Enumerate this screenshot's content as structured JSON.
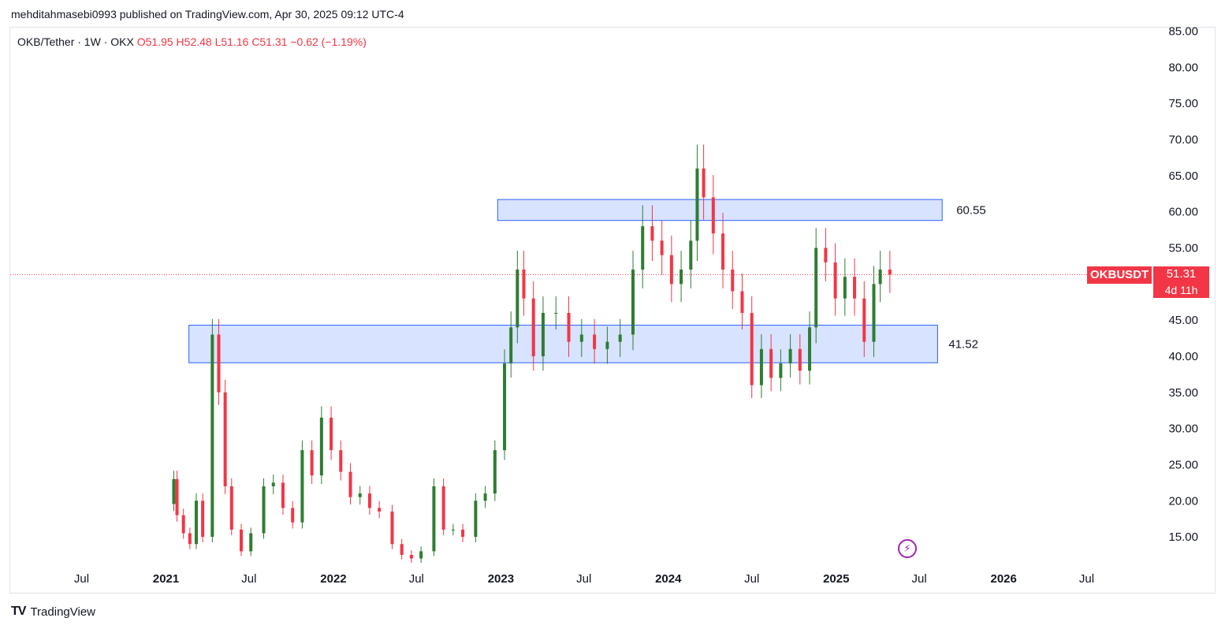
{
  "publisher_line": "mehditahmasebi0993 published on TradingView.com, Apr 30, 2025 09:12 UTC-4",
  "legend": {
    "symbol": "OKB/Tether · 1W · OKX",
    "open": "O51.95",
    "high": "H52.48",
    "low": "L51.16",
    "close": "C51.31",
    "change": "−0.62 (−1.19%)"
  },
  "price_tag": {
    "symbol": "OKBUSDT",
    "price": "51.31",
    "countdown": "4d 11h"
  },
  "brand": {
    "logo": "TV",
    "name": "TradingView"
  },
  "colors": {
    "up": "#22ab94",
    "up_body": "#2e7d32",
    "down": "#f23645",
    "zone_fill": "#d1deff",
    "zone_stroke": "#2962ff",
    "last_price_line": "#f23645"
  },
  "icons": [
    "tradingview-logo-icon",
    "flash-icon"
  ],
  "chart_data": {
    "type": "candlestick",
    "interval": "1W",
    "y_axis": {
      "ticks": [
        "15.00",
        "20.00",
        "25.00",
        "30.00",
        "35.00",
        "40.00",
        "45.00",
        "50.00",
        "55.00",
        "60.00",
        "65.00",
        "70.00",
        "75.00",
        "80.00",
        "85.00"
      ],
      "range": [
        11.5,
        85.5
      ],
      "side": "right"
    },
    "x_axis": {
      "ticks": [
        "Jul",
        "2021",
        "Jul",
        "2022",
        "Jul",
        "2023",
        "Jul",
        "2024",
        "Jul",
        "2025",
        "Jul",
        "2026",
        "Jul"
      ],
      "bold_ticks": [
        "2021",
        "2022",
        "2023",
        "2024",
        "2025",
        "2026"
      ],
      "range": [
        "2020-05-01",
        "2026-09-01"
      ]
    },
    "last_price": 51.31,
    "zones": [
      {
        "label": "60.55",
        "x_start": "2022-12-25",
        "x_end": "2025-08-20",
        "y_low": 58.8,
        "y_high": 61.7
      },
      {
        "label": "41.52",
        "x_start": "2021-02-20",
        "x_end": "2025-08-10",
        "y_low": 39.1,
        "y_high": 44.3
      }
    ],
    "candles": [
      {
        "t": "2021-01-18",
        "c": 23.0
      },
      {
        "t": "2021-01-25",
        "c": 18.0
      },
      {
        "t": "2021-02-08",
        "c": 15.5
      },
      {
        "t": "2021-02-22",
        "c": 14.0
      },
      {
        "t": "2021-03-08",
        "c": 20.0
      },
      {
        "t": "2021-03-22",
        "c": 15.0
      },
      {
        "t": "2021-04-12",
        "c": 43.0
      },
      {
        "t": "2021-04-26",
        "c": 35.0
      },
      {
        "t": "2021-05-10",
        "c": 22.0
      },
      {
        "t": "2021-05-24",
        "c": 16.0
      },
      {
        "t": "2021-06-14",
        "c": 13.0
      },
      {
        "t": "2021-07-05",
        "c": 15.5
      },
      {
        "t": "2021-08-02",
        "c": 22.0
      },
      {
        "t": "2021-08-23",
        "c": 22.5
      },
      {
        "t": "2021-09-13",
        "c": 19.0
      },
      {
        "t": "2021-10-04",
        "c": 17.0
      },
      {
        "t": "2021-10-25",
        "c": 27.0
      },
      {
        "t": "2021-11-15",
        "c": 23.5
      },
      {
        "t": "2021-12-06",
        "c": 31.5
      },
      {
        "t": "2021-12-27",
        "c": 27.0
      },
      {
        "t": "2022-01-17",
        "c": 24.0
      },
      {
        "t": "2022-02-07",
        "c": 20.5
      },
      {
        "t": "2022-02-28",
        "c": 21.0
      },
      {
        "t": "2022-03-21",
        "c": 19.0
      },
      {
        "t": "2022-04-11",
        "c": 18.5
      },
      {
        "t": "2022-05-09",
        "c": 14.0
      },
      {
        "t": "2022-05-30",
        "c": 12.5
      },
      {
        "t": "2022-06-20",
        "c": 12.0
      },
      {
        "t": "2022-07-11",
        "c": 13.0
      },
      {
        "t": "2022-08-08",
        "c": 22.0
      },
      {
        "t": "2022-08-29",
        "c": 16.0
      },
      {
        "t": "2022-09-19",
        "c": 16.0
      },
      {
        "t": "2022-10-10",
        "c": 15.0
      },
      {
        "t": "2022-11-07",
        "c": 20.0
      },
      {
        "t": "2022-11-28",
        "c": 21.0
      },
      {
        "t": "2022-12-19",
        "c": 27.0
      },
      {
        "t": "2023-01-09",
        "c": 39.0
      },
      {
        "t": "2023-01-23",
        "c": 44.0
      },
      {
        "t": "2023-02-06",
        "c": 52.0
      },
      {
        "t": "2023-02-20",
        "c": 48.0
      },
      {
        "t": "2023-03-13",
        "c": 40.0
      },
      {
        "t": "2023-04-03",
        "c": 46.0
      },
      {
        "t": "2023-05-01",
        "c": 46.0
      },
      {
        "t": "2023-05-29",
        "c": 42.0
      },
      {
        "t": "2023-06-26",
        "c": 43.0
      },
      {
        "t": "2023-07-24",
        "c": 41.0
      },
      {
        "t": "2023-08-21",
        "c": 42.0
      },
      {
        "t": "2023-09-18",
        "c": 43.0
      },
      {
        "t": "2023-10-16",
        "c": 52.0
      },
      {
        "t": "2023-11-06",
        "c": 58.0
      },
      {
        "t": "2023-11-27",
        "c": 56.0
      },
      {
        "t": "2023-12-18",
        "c": 54.0
      },
      {
        "t": "2024-01-08",
        "c": 50.0
      },
      {
        "t": "2024-01-29",
        "c": 52.0
      },
      {
        "t": "2024-02-19",
        "c": 56.0
      },
      {
        "t": "2024-03-04",
        "c": 66.0
      },
      {
        "t": "2024-03-18",
        "c": 62.0
      },
      {
        "t": "2024-04-08",
        "c": 57.0
      },
      {
        "t": "2024-04-29",
        "c": 52.0
      },
      {
        "t": "2024-05-20",
        "c": 49.0
      },
      {
        "t": "2024-06-10",
        "c": 46.0
      },
      {
        "t": "2024-07-01",
        "c": 36.0
      },
      {
        "t": "2024-07-22",
        "c": 41.0
      },
      {
        "t": "2024-08-12",
        "c": 37.0
      },
      {
        "t": "2024-09-02",
        "c": 39.0
      },
      {
        "t": "2024-09-23",
        "c": 41.0
      },
      {
        "t": "2024-10-14",
        "c": 38.0
      },
      {
        "t": "2024-11-04",
        "c": 44.0
      },
      {
        "t": "2024-11-18",
        "c": 55.0
      },
      {
        "t": "2024-12-09",
        "c": 53.0
      },
      {
        "t": "2024-12-30",
        "c": 48.0
      },
      {
        "t": "2025-01-20",
        "c": 51.0
      },
      {
        "t": "2025-02-10",
        "c": 48.0
      },
      {
        "t": "2025-03-03",
        "c": 42.0
      },
      {
        "t": "2025-03-24",
        "c": 50.0
      },
      {
        "t": "2025-04-07",
        "c": 52.0
      },
      {
        "t": "2025-04-28",
        "c": 51.31
      }
    ]
  }
}
